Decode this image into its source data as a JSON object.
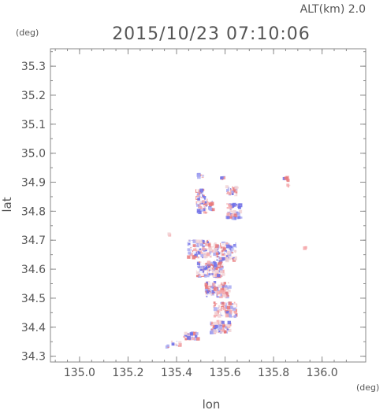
{
  "chart_data": {
    "type": "scatter",
    "title": "2015/10/23 07:10:06",
    "altitude_label": "ALT(km) 2.0",
    "xlabel": "lon",
    "ylabel": "lat",
    "x_unit": "(deg)",
    "y_unit": "(deg)",
    "xlim": [
      134.88,
      136.18
    ],
    "ylim": [
      34.28,
      35.36
    ],
    "x_ticks": [
      "135.0",
      "135.2",
      "135.4",
      "135.6",
      "135.8",
      "136.0"
    ],
    "y_ticks": [
      "34.3",
      "34.4",
      "34.5",
      "34.6",
      "34.7",
      "34.8",
      "34.9",
      "35.0",
      "35.1",
      "35.2",
      "35.3"
    ],
    "grid": false,
    "colors": {
      "positive": "#e8787a",
      "negative": "#6f70e8",
      "neutral": "#f2d4d6",
      "axis": "#888888",
      "text": "#555555"
    },
    "clusters": [
      {
        "lon": 135.5,
        "lat": 34.923,
        "w": 0.025,
        "h": 0.012,
        "n": 14
      },
      {
        "lon": 135.59,
        "lat": 34.915,
        "w": 0.02,
        "h": 0.012,
        "n": 10
      },
      {
        "lon": 135.85,
        "lat": 34.91,
        "w": 0.02,
        "h": 0.012,
        "n": 10
      },
      {
        "lon": 135.86,
        "lat": 34.885,
        "w": 0.015,
        "h": 0.01,
        "n": 6
      },
      {
        "lon": 135.5,
        "lat": 34.86,
        "w": 0.03,
        "h": 0.03,
        "n": 30
      },
      {
        "lon": 135.63,
        "lat": 34.87,
        "w": 0.05,
        "h": 0.03,
        "n": 40
      },
      {
        "lon": 135.52,
        "lat": 34.82,
        "w": 0.07,
        "h": 0.05,
        "n": 70
      },
      {
        "lon": 135.64,
        "lat": 34.8,
        "w": 0.07,
        "h": 0.05,
        "n": 70
      },
      {
        "lon": 135.5,
        "lat": 34.67,
        "w": 0.1,
        "h": 0.06,
        "n": 150
      },
      {
        "lon": 135.6,
        "lat": 34.66,
        "w": 0.09,
        "h": 0.06,
        "n": 140
      },
      {
        "lon": 135.54,
        "lat": 34.6,
        "w": 0.11,
        "h": 0.05,
        "n": 160
      },
      {
        "lon": 135.57,
        "lat": 34.53,
        "w": 0.1,
        "h": 0.05,
        "n": 130
      },
      {
        "lon": 135.6,
        "lat": 34.46,
        "w": 0.09,
        "h": 0.05,
        "n": 110
      },
      {
        "lon": 135.58,
        "lat": 34.4,
        "w": 0.08,
        "h": 0.04,
        "n": 90
      },
      {
        "lon": 135.46,
        "lat": 34.37,
        "w": 0.06,
        "h": 0.025,
        "n": 40
      },
      {
        "lon": 135.4,
        "lat": 34.345,
        "w": 0.04,
        "h": 0.015,
        "n": 14
      },
      {
        "lon": 135.36,
        "lat": 34.333,
        "w": 0.015,
        "h": 0.008,
        "n": 4
      },
      {
        "lon": 135.93,
        "lat": 34.672,
        "w": 0.01,
        "h": 0.006,
        "n": 3
      },
      {
        "lon": 135.37,
        "lat": 34.72,
        "w": 0.01,
        "h": 0.006,
        "n": 2
      }
    ]
  }
}
